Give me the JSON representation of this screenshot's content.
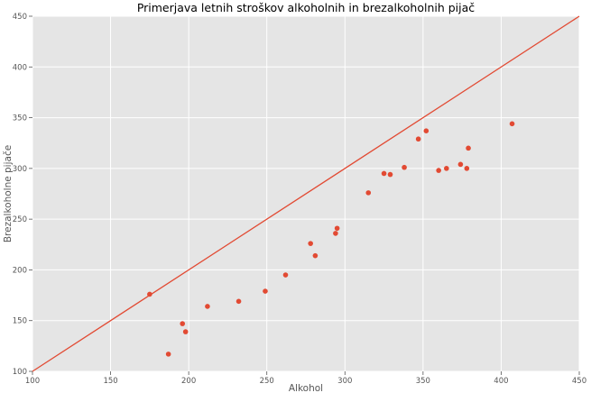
{
  "chart_data": {
    "type": "scatter",
    "title": "Primerjava letnih stroškov alkoholnih in brezalkoholnih pijač",
    "xlabel": "Alkohol",
    "ylabel": "Brezalkoholne pijače",
    "xlim": [
      100,
      450
    ],
    "ylim": [
      100,
      450
    ],
    "x_ticks": [
      "100",
      "150",
      "200",
      "250",
      "300",
      "350",
      "400",
      "450"
    ],
    "y_ticks": [
      "100",
      "150",
      "200",
      "250",
      "300",
      "350",
      "400",
      "450"
    ],
    "grid": true,
    "reference_line": {
      "type": "y=x",
      "color": "#E24A33"
    },
    "colors": {
      "background": "#E5E5E5",
      "grid": "#FFFFFF",
      "points": "#E24A33"
    },
    "points": [
      {
        "x": 175,
        "y": 176
      },
      {
        "x": 187,
        "y": 117
      },
      {
        "x": 196,
        "y": 147
      },
      {
        "x": 198,
        "y": 139
      },
      {
        "x": 212,
        "y": 164
      },
      {
        "x": 232,
        "y": 169
      },
      {
        "x": 249,
        "y": 179
      },
      {
        "x": 262,
        "y": 195
      },
      {
        "x": 278,
        "y": 226
      },
      {
        "x": 281,
        "y": 214
      },
      {
        "x": 294,
        "y": 236
      },
      {
        "x": 295,
        "y": 241
      },
      {
        "x": 315,
        "y": 276
      },
      {
        "x": 325,
        "y": 295
      },
      {
        "x": 329,
        "y": 294
      },
      {
        "x": 338,
        "y": 301
      },
      {
        "x": 347,
        "y": 329
      },
      {
        "x": 352,
        "y": 337
      },
      {
        "x": 360,
        "y": 298
      },
      {
        "x": 365,
        "y": 300
      },
      {
        "x": 374,
        "y": 304
      },
      {
        "x": 378,
        "y": 300
      },
      {
        "x": 379,
        "y": 320
      },
      {
        "x": 407,
        "y": 344
      }
    ]
  }
}
